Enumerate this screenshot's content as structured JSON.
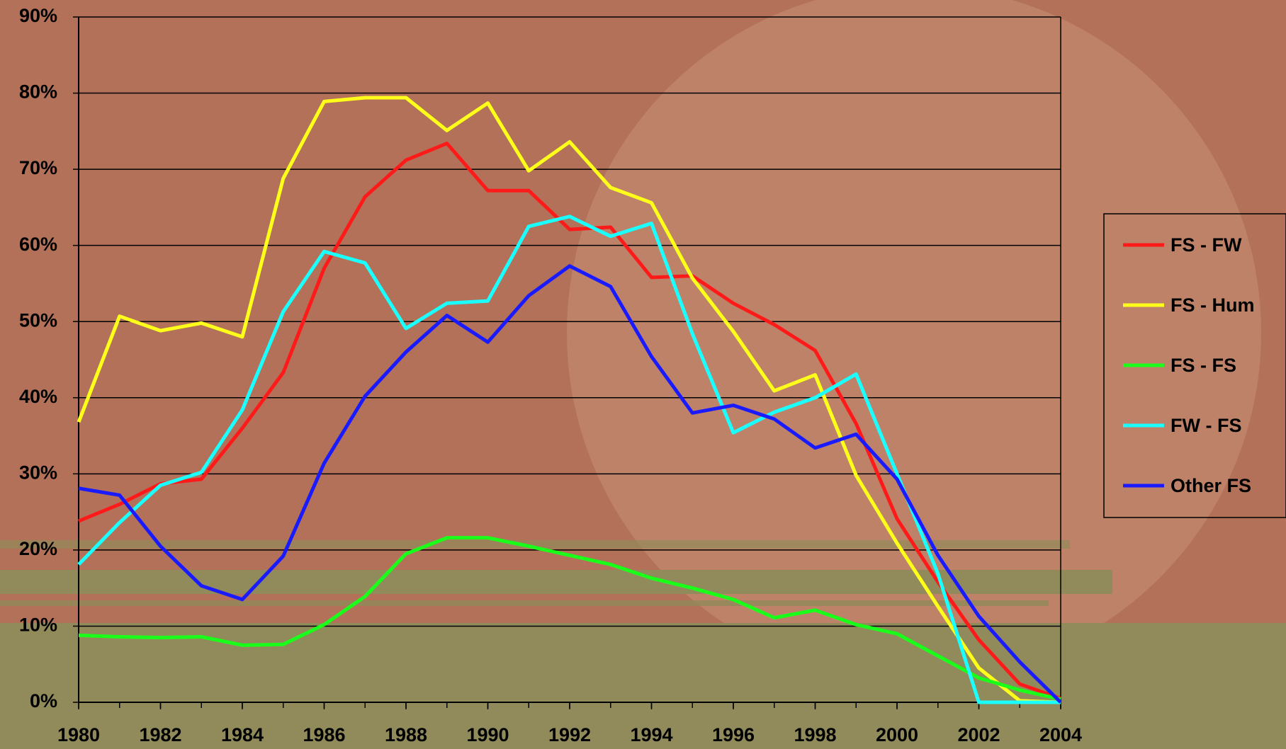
{
  "chart_data": {
    "type": "line",
    "x": [
      1980,
      1981,
      1982,
      1983,
      1984,
      1985,
      1986,
      1987,
      1988,
      1989,
      1990,
      1991,
      1992,
      1993,
      1994,
      1995,
      1996,
      1997,
      1998,
      1999,
      2000,
      2001,
      2002,
      2003,
      2004
    ],
    "series": [
      {
        "name": "FS - FW",
        "color": "#ff1a1a",
        "values": [
          23.8,
          26,
          28.7,
          29.3,
          36,
          43.3,
          57,
          66.4,
          71.2,
          73.4,
          67.2,
          67.2,
          62.1,
          62.4,
          55.8,
          56,
          52.4,
          49.6,
          46.2,
          36.6,
          24.1,
          15.8,
          8.2,
          2.4,
          0.5
        ]
      },
      {
        "name": "FS - Hum",
        "color": "#ffff1a",
        "values": [
          36.8,
          50.7,
          48.8,
          49.8,
          48,
          68.8,
          78.9,
          79.4,
          79.4,
          75.1,
          78.7,
          69.8,
          73.6,
          67.6,
          65.6,
          55.7,
          48.7,
          40.9,
          43,
          29.8,
          20.9,
          12.6,
          4.5,
          0.2,
          0
        ]
      },
      {
        "name": "FS - FS",
        "color": "#1aff1a",
        "values": [
          8.8,
          8.6,
          8.5,
          8.6,
          7.5,
          7.6,
          10.2,
          13.9,
          19.5,
          21.6,
          21.6,
          20.5,
          19.3,
          18.1,
          16.3,
          15,
          13.5,
          11.1,
          12.1,
          10.2,
          9,
          6.1,
          3.2,
          1.6,
          0.4
        ]
      },
      {
        "name": "FW - FS",
        "color": "#1affff",
        "values": [
          18.1,
          23.6,
          28.5,
          30.2,
          38.4,
          51.3,
          59.2,
          57.7,
          49.1,
          52.4,
          52.7,
          62.5,
          63.8,
          61.2,
          62.9,
          48.4,
          35.4,
          38.1,
          40,
          43.1,
          30,
          16.9,
          0,
          0,
          0
        ]
      },
      {
        "name": "Other FS",
        "color": "#1a1aff",
        "values": [
          28.1,
          27.2,
          20.5,
          15.3,
          13.5,
          19.2,
          31.4,
          40.2,
          46,
          50.8,
          47.3,
          53.4,
          57.3,
          54.6,
          45.4,
          38,
          39,
          37.2,
          33.4,
          35.2,
          29.3,
          19.3,
          11.3,
          5.3,
          0
        ]
      }
    ],
    "xlim": [
      1980,
      2004
    ],
    "xticks": [
      1980,
      1982,
      1984,
      1986,
      1988,
      1990,
      1992,
      1994,
      1996,
      1998,
      2000,
      2002,
      2004
    ],
    "ylim": [
      0,
      90
    ],
    "yticks": [
      {
        "value": 0,
        "label": "0%"
      },
      {
        "value": 10,
        "label": "10%"
      },
      {
        "value": 20,
        "label": "20%"
      },
      {
        "value": 30,
        "label": "30%"
      },
      {
        "value": 40,
        "label": "40%"
      },
      {
        "value": 50,
        "label": "50%"
      },
      {
        "value": 60,
        "label": "60%"
      },
      {
        "value": 70,
        "label": "70%"
      },
      {
        "value": 80,
        "label": "80%"
      },
      {
        "value": 90,
        "label": "90%"
      }
    ],
    "grid": true,
    "legend": "right"
  }
}
